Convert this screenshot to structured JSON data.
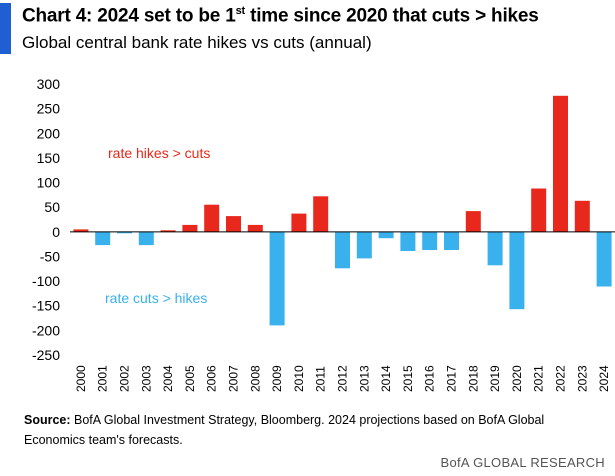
{
  "header": {
    "title_main": "Chart 4: 2024 set to be 1",
    "title_sup": "st",
    "title_rest": " time since 2020 that  cuts > hikes",
    "subtitle": "Global central bank rate hikes vs cuts (annual)"
  },
  "chart_data": {
    "type": "bar",
    "title": "",
    "xlabel": "",
    "ylabel": "",
    "categories": [
      "2000",
      "2001",
      "2002",
      "2003",
      "2004",
      "2005",
      "2006",
      "2007",
      "2008",
      "2009",
      "2010",
      "2011",
      "2012",
      "2013",
      "2014",
      "2015",
      "2016",
      "2017",
      "2018",
      "2019",
      "2020",
      "2021",
      "2022",
      "2023",
      "2024"
    ],
    "values": [
      5,
      -27,
      -3,
      -27,
      3,
      14,
      55,
      32,
      14,
      -190,
      37,
      72,
      -74,
      -54,
      -13,
      -39,
      -37,
      -37,
      42,
      -68,
      -157,
      88,
      276,
      63,
      -111
    ],
    "ylim": [
      -250,
      300
    ],
    "yticks": [
      300,
      250,
      200,
      150,
      100,
      50,
      0,
      -50,
      -100,
      -150,
      -200,
      -250
    ],
    "grid": false,
    "legend": "none",
    "positive_color": "#e8281c",
    "negative_color": "#39b1ec",
    "annotations": [
      {
        "text": "rate hikes > cuts",
        "color": "#e8281c"
      },
      {
        "text": "rate cuts > hikes",
        "color": "#39b1ec"
      }
    ]
  },
  "footer": {
    "source_label": "Source:",
    "source_text": " BofA Global Investment Strategy, Bloomberg. 2024 projections based on BofA Global Economics  team's forecasts.",
    "brand": "BofA GLOBAL RESEARCH"
  }
}
